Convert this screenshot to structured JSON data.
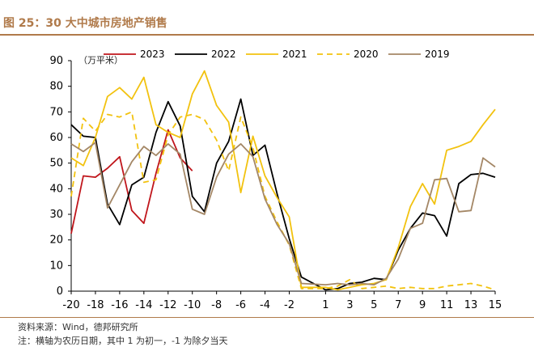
{
  "figure": {
    "title": "图 25：30 大中城市房地产销售",
    "source": "资料来源：Wind，德邦研究所",
    "note": "注：横轴为农历日期，其中 1 为初一，-1 为除夕当天"
  },
  "chart_data": {
    "type": "line",
    "unit_label": "（万平米）",
    "ylim": [
      0,
      90
    ],
    "yticks": [
      0,
      10,
      20,
      30,
      40,
      50,
      60,
      70,
      80,
      90
    ],
    "xlim": [
      -20,
      15
    ],
    "xticks": [
      -20,
      -18,
      -16,
      -14,
      -12,
      -10,
      -8,
      -6,
      -4,
      -2,
      1,
      3,
      5,
      7,
      9,
      11,
      13,
      15
    ],
    "legend_position": "top",
    "series": [
      {
        "name": "2023",
        "color": "#c0161c",
        "dash": "solid",
        "x": [
          -20,
          -19,
          -18,
          -17,
          -16,
          -15,
          -14,
          -13,
          -12,
          -11,
          -10
        ],
        "y": [
          22.5,
          45,
          44.5,
          48,
          52.5,
          31.5,
          26.5,
          46,
          63,
          52,
          47
        ]
      },
      {
        "name": "2022",
        "color": "#000000",
        "dash": "solid",
        "x": [
          -20,
          -19,
          -18,
          -17,
          -16,
          -15,
          -14,
          -13,
          -12,
          -11,
          -10,
          -9,
          -8,
          -7,
          -6,
          -5,
          -4,
          -3,
          -2,
          -1,
          1,
          2,
          3,
          4,
          5,
          6,
          7,
          8,
          9,
          10,
          11,
          12,
          13,
          14,
          15
        ],
        "y": [
          65,
          60.5,
          60,
          34,
          26,
          41.5,
          44.5,
          62,
          74,
          64.5,
          37,
          31,
          50,
          58.5,
          75,
          53,
          57,
          38,
          20.5,
          5.5,
          0.5,
          1,
          3,
          3.5,
          5,
          4.5,
          16,
          24.5,
          30.5,
          29.5,
          21.5,
          42,
          45.5,
          46,
          44.5
        ]
      },
      {
        "name": "2021",
        "color": "#f2c20f",
        "dash": "solid",
        "x": [
          -20,
          -19,
          -18,
          -17,
          -16,
          -15,
          -14,
          -13,
          -12,
          -11,
          -10,
          -9,
          -8,
          -7,
          -6,
          -5,
          -4,
          -3,
          -2,
          -1,
          1,
          2,
          3,
          4,
          5,
          6,
          7,
          8,
          9,
          10,
          11,
          12,
          13,
          14,
          15
        ],
        "y": [
          52,
          49,
          60,
          76,
          79.5,
          75,
          83.5,
          65,
          62,
          60,
          77,
          86,
          72.5,
          66,
          38.5,
          60.5,
          45,
          36.5,
          29,
          1.5,
          1.5,
          0.5,
          1.5,
          2.5,
          3,
          4.5,
          17,
          33,
          42,
          34,
          55,
          56.5,
          58.5,
          65,
          71
        ]
      },
      {
        "name": "2020",
        "color": "#f2c20f",
        "dash": "dashed",
        "x": [
          -20,
          -19,
          -18,
          -17,
          -16,
          -15,
          -14,
          -13,
          -12,
          -11,
          -10,
          -9,
          -8,
          -7,
          -6,
          -5,
          -4,
          -3,
          -2,
          -1,
          1,
          2,
          3,
          4,
          5,
          6,
          7,
          8,
          9,
          10,
          11,
          12,
          13,
          14,
          15
        ],
        "y": [
          37,
          67.5,
          62.5,
          69,
          68,
          70,
          42.5,
          43.5,
          61,
          68,
          69,
          67,
          59,
          47,
          68,
          56,
          37,
          27,
          18,
          1,
          1,
          2,
          4.5,
          1,
          1.5,
          2,
          1,
          1.5,
          1,
          1,
          2,
          2.5,
          3,
          2,
          0.5
        ]
      },
      {
        "name": "2019",
        "color": "#a48766",
        "dash": "solid",
        "x": [
          -20,
          -19,
          -18,
          -17,
          -16,
          -15,
          -14,
          -13,
          -12,
          -11,
          -10,
          -9,
          -8,
          -7,
          -6,
          -5,
          -4,
          -3,
          -2,
          -1,
          1,
          2,
          3,
          4,
          5,
          6,
          7,
          8,
          9,
          10,
          11,
          12,
          13,
          14,
          15
        ],
        "y": [
          57.5,
          54.5,
          58,
          32.5,
          41.5,
          50.5,
          56.5,
          53,
          57.5,
          53.5,
          32,
          30,
          44.5,
          53.5,
          57.5,
          52.5,
          36,
          26,
          18.5,
          3,
          2.5,
          3,
          2.5,
          3,
          2.5,
          5,
          12.5,
          24.5,
          26.5,
          43.5,
          44,
          31,
          31.5,
          52,
          48.5
        ]
      }
    ]
  }
}
